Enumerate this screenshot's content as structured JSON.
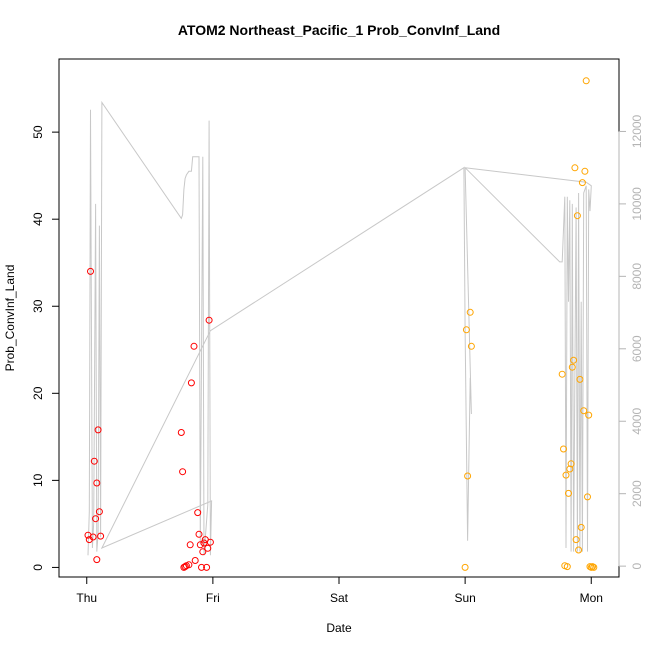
{
  "chart_data": {
    "type": "scatter",
    "title": "ATOM2 Northeast_Pacific_1 Prob_ConvInf_Land",
    "xlabel": "Date",
    "ylabel": "Prob_ConvInf_Land",
    "x_ticks": [
      {
        "value": 0,
        "label": "Thu"
      },
      {
        "value": 1,
        "label": "Fri"
      },
      {
        "value": 2,
        "label": "Sat"
      },
      {
        "value": 3,
        "label": "Sun"
      },
      {
        "value": 4,
        "label": "Mon"
      }
    ],
    "xlim": [
      -0.22,
      4.22
    ],
    "ylim": [
      -1.1,
      58.4
    ],
    "y_ticks": [
      0,
      10,
      20,
      30,
      40,
      50
    ],
    "y2lim": [
      -300,
      14000
    ],
    "y2_ticks": [
      0,
      2000,
      4000,
      6000,
      8000,
      10000,
      12000
    ],
    "colors": {
      "red": "#ff0000",
      "orange": "#ffa500",
      "line": "#c8c8c8",
      "right_axis": "#b4b4b4"
    },
    "series": [
      {
        "color": "red",
        "points": [
          [
            0.01,
            3.7
          ],
          [
            0.02,
            3.2
          ],
          [
            0.03,
            34.0
          ],
          [
            0.05,
            3.5
          ],
          [
            0.06,
            12.2
          ],
          [
            0.07,
            5.6
          ],
          [
            0.08,
            0.9
          ],
          [
            0.08,
            9.7
          ],
          [
            0.09,
            15.8
          ],
          [
            0.1,
            6.4
          ],
          [
            0.11,
            3.6
          ],
          [
            0.75,
            15.5
          ],
          [
            0.76,
            11.0
          ],
          [
            0.77,
            0.0
          ],
          [
            0.78,
            0.1
          ],
          [
            0.79,
            0.2
          ],
          [
            0.81,
            0.3
          ],
          [
            0.82,
            2.6
          ],
          [
            0.83,
            21.2
          ],
          [
            0.85,
            25.4
          ],
          [
            0.86,
            0.8
          ],
          [
            0.88,
            6.3
          ],
          [
            0.89,
            3.8
          ],
          [
            0.9,
            2.6
          ],
          [
            0.91,
            0.0
          ],
          [
            0.92,
            1.8
          ],
          [
            0.93,
            2.8
          ],
          [
            0.94,
            3.2
          ],
          [
            0.95,
            0.0
          ],
          [
            0.96,
            2.2
          ],
          [
            0.97,
            28.4
          ],
          [
            0.98,
            2.9
          ]
        ]
      },
      {
        "color": "orange",
        "points": [
          [
            3.0,
            0.0
          ],
          [
            3.01,
            27.3
          ],
          [
            3.02,
            10.5
          ],
          [
            3.04,
            29.3
          ],
          [
            3.05,
            25.4
          ],
          [
            3.77,
            22.2
          ],
          [
            3.78,
            13.6
          ],
          [
            3.79,
            0.2
          ],
          [
            3.8,
            10.6
          ],
          [
            3.81,
            0.1
          ],
          [
            3.82,
            8.5
          ],
          [
            3.83,
            11.3
          ],
          [
            3.84,
            11.9
          ],
          [
            3.85,
            23.0
          ],
          [
            3.86,
            23.8
          ],
          [
            3.87,
            45.9
          ],
          [
            3.88,
            3.2
          ],
          [
            3.89,
            40.4
          ],
          [
            3.9,
            2.0
          ],
          [
            3.91,
            21.6
          ],
          [
            3.92,
            4.6
          ],
          [
            3.93,
            44.2
          ],
          [
            3.94,
            18.0
          ],
          [
            3.95,
            45.5
          ],
          [
            3.96,
            55.9
          ],
          [
            3.97,
            8.1
          ],
          [
            3.98,
            17.5
          ],
          [
            3.99,
            0.1
          ],
          [
            4.0,
            0.0
          ],
          [
            4.01,
            0.1
          ],
          [
            4.02,
            0.0
          ]
        ]
      }
    ],
    "secondary_line": {
      "axis": "right",
      "points": [
        [
          0.01,
          300
        ],
        [
          0.02,
          1500
        ],
        [
          0.03,
          12600
        ],
        [
          0.045,
          500
        ],
        [
          0.055,
          1200
        ],
        [
          0.07,
          10000
        ],
        [
          0.08,
          400
        ],
        [
          0.09,
          900
        ],
        [
          0.1,
          9400
        ],
        [
          0.11,
          800
        ],
        [
          0.12,
          12800
        ],
        [
          0.75,
          9600
        ],
        [
          0.76,
          9700
        ],
        [
          0.77,
          10400
        ],
        [
          0.78,
          10700
        ],
        [
          0.79,
          10800
        ],
        [
          0.81,
          10900
        ],
        [
          0.83,
          10900
        ],
        [
          0.84,
          11300
        ],
        [
          0.87,
          11300
        ],
        [
          0.89,
          11300
        ],
        [
          0.9,
          600
        ],
        [
          0.92,
          11300
        ],
        [
          0.93,
          300
        ],
        [
          0.96,
          1700
        ],
        [
          0.97,
          12300
        ],
        [
          0.98,
          300
        ],
        [
          0.99,
          1800
        ],
        [
          0.12,
          500
        ],
        [
          0.98,
          6500
        ],
        [
          2.99,
          11000
        ],
        [
          3.0,
          6500
        ],
        [
          3.02,
          700
        ],
        [
          3.04,
          5200
        ],
        [
          3.05,
          4200
        ],
        [
          3.0,
          11000
        ],
        [
          3.75,
          8400
        ],
        [
          3.77,
          8400
        ],
        [
          3.79,
          10200
        ],
        [
          3.8,
          500
        ],
        [
          3.81,
          10200
        ],
        [
          3.82,
          7300
        ],
        [
          3.83,
          10100
        ],
        [
          3.84,
          400
        ],
        [
          3.85,
          10000
        ],
        [
          3.86,
          400
        ],
        [
          3.88,
          9900
        ],
        [
          3.89,
          400
        ],
        [
          3.9,
          10300
        ],
        [
          3.91,
          400
        ],
        [
          3.92,
          7300
        ],
        [
          3.93,
          400
        ],
        [
          3.94,
          10300
        ],
        [
          3.96,
          10500
        ],
        [
          3.97,
          400
        ],
        [
          3.98,
          10400
        ],
        [
          3.99,
          9800
        ],
        [
          4.0,
          10500
        ],
        [
          3.96,
          10600
        ],
        [
          3.0,
          11000
        ]
      ]
    }
  }
}
